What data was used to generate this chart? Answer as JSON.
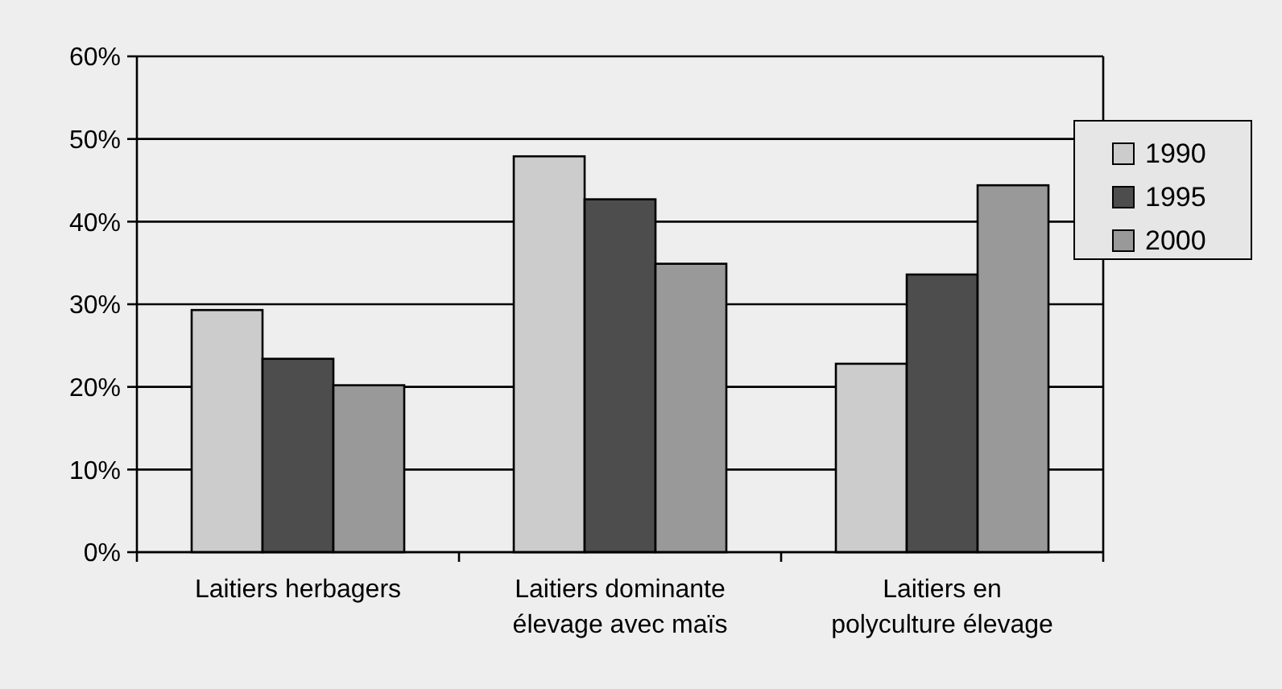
{
  "chart_data": {
    "type": "bar",
    "categories": [
      "Laitiers herbagers",
      "Laitiers dominante élevage avec maïs",
      "Laitiers en polyculture élevage"
    ],
    "series": [
      {
        "name": "1990",
        "color": "#cccccc",
        "values": [
          29.3,
          47.9,
          22.8
        ]
      },
      {
        "name": "1995",
        "color": "#4d4d4d",
        "values": [
          23.4,
          42.7,
          33.6
        ]
      },
      {
        "name": "2000",
        "color": "#999999",
        "values": [
          20.2,
          34.9,
          44.4
        ]
      }
    ],
    "ylim": [
      0,
      60
    ],
    "yticks": [
      {
        "value": 0,
        "label": "0%"
      },
      {
        "value": 10,
        "label": "10%"
      },
      {
        "value": 20,
        "label": "20%"
      },
      {
        "value": 30,
        "label": "30%"
      },
      {
        "value": 40,
        "label": "40%"
      },
      {
        "value": 50,
        "label": "50%"
      },
      {
        "value": 60,
        "label": "60%"
      }
    ],
    "grid": "y",
    "legend": "top right"
  }
}
